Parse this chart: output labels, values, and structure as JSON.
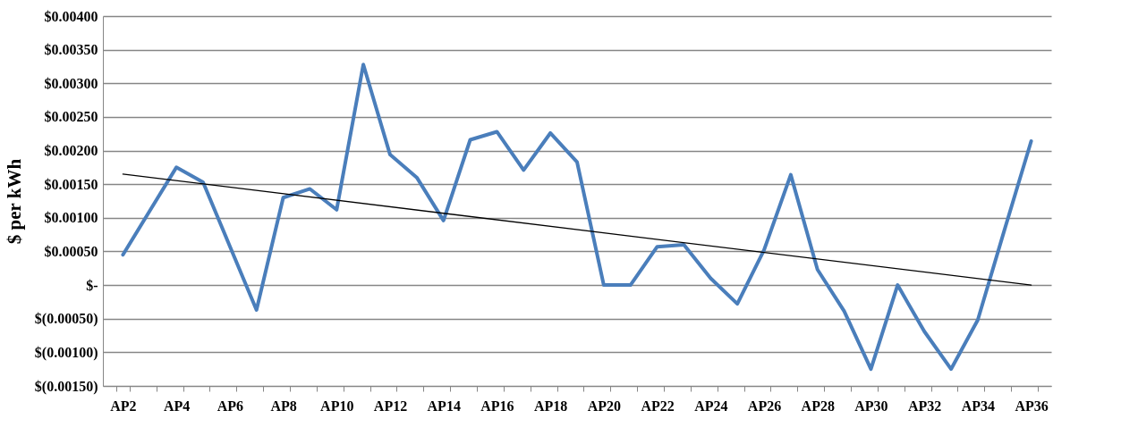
{
  "chart_data": {
    "type": "line",
    "ylabel": "$ per kWh",
    "categories": [
      "AP2",
      null,
      "AP4",
      null,
      "AP6",
      null,
      "AP8",
      null,
      "AP10",
      null,
      "AP12",
      null,
      "AP14",
      null,
      "AP16",
      null,
      "AP18",
      null,
      "AP20",
      null,
      "AP22",
      null,
      "AP24",
      null,
      "AP26",
      null,
      "AP28",
      null,
      "AP30",
      null,
      "AP32",
      null,
      "AP34",
      null,
      "AP36"
    ],
    "series": [
      {
        "color": "#4a7ebb",
        "values": [
          0.00045,
          0.0011,
          0.00175,
          0.00153,
          0.00058,
          -0.00037,
          0.0013,
          0.00143,
          0.00112,
          0.00328,
          0.00194,
          0.0016,
          0.00096,
          0.00216,
          0.00228,
          0.00171,
          0.00226,
          0.00183,
          0,
          0,
          0.00057,
          0.0006,
          0.0001,
          -0.00028,
          0.00052,
          0.00164,
          0.00023,
          -0.00039,
          -0.00125,
          0,
          -0.00069,
          -0.00125,
          -0.00052,
          0.00082,
          0.00214
        ]
      },
      {
        "type": "line",
        "color": "#000000",
        "x": [
          "AP2",
          "AP36"
        ],
        "values": [
          0.00165,
          0.0
        ]
      }
    ],
    "ylim": [
      -0.0015,
      0.004
    ],
    "yticks": [
      {
        "value": -0.0015,
        "label": "$(0.00150)"
      },
      {
        "value": -0.001,
        "label": "$(0.00100)"
      },
      {
        "value": -0.0005,
        "label": "$(0.00050)"
      },
      {
        "value": 0,
        "label": "$-"
      },
      {
        "value": 0.0005,
        "label": "$0.00050"
      },
      {
        "value": 0.001,
        "label": "$0.00100"
      },
      {
        "value": 0.0015,
        "label": "$0.00150"
      },
      {
        "value": 0.002,
        "label": "$0.00200"
      },
      {
        "value": 0.0025,
        "label": "$0.00250"
      },
      {
        "value": 0.003,
        "label": "$0.00300"
      },
      {
        "value": 0.0035,
        "label": "$0.00350"
      },
      {
        "value": 0.004,
        "label": "$0.00400"
      }
    ],
    "grid": "y",
    "marker": "none",
    "line_style": "solid"
  }
}
